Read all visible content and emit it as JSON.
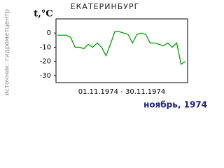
{
  "chart_data": {
    "type": "line",
    "title": "ЕКАТЕРИНБУРГ",
    "y_label": "t,°C",
    "x_label": "01.11.1974 - 30.11.1974",
    "source": "источник: гидрометцентр",
    "footer": "ноябрь, 1974",
    "x": [
      1,
      2,
      3,
      4,
      5,
      6,
      7,
      8,
      9,
      10,
      11,
      12,
      13,
      14,
      15,
      16,
      17,
      18,
      19,
      20,
      21,
      22,
      23,
      24,
      25,
      26,
      27,
      28,
      29,
      30
    ],
    "series": [
      {
        "name": "t",
        "color": "#00a000",
        "values": [
          -1.5,
          -1.5,
          -1.5,
          -3,
          -10,
          -10,
          -11,
          -8,
          -10,
          -7,
          -10,
          -16,
          -8,
          1,
          1,
          0,
          -1,
          -7,
          -1,
          0,
          -1,
          -7,
          -7,
          -8,
          -9,
          -7,
          -10,
          -7,
          -22,
          -20
        ]
      }
    ],
    "xlim": [
      1,
      30
    ],
    "ylim": [
      -35,
      10
    ],
    "yticks": [
      0,
      -10,
      -20,
      -30
    ]
  }
}
